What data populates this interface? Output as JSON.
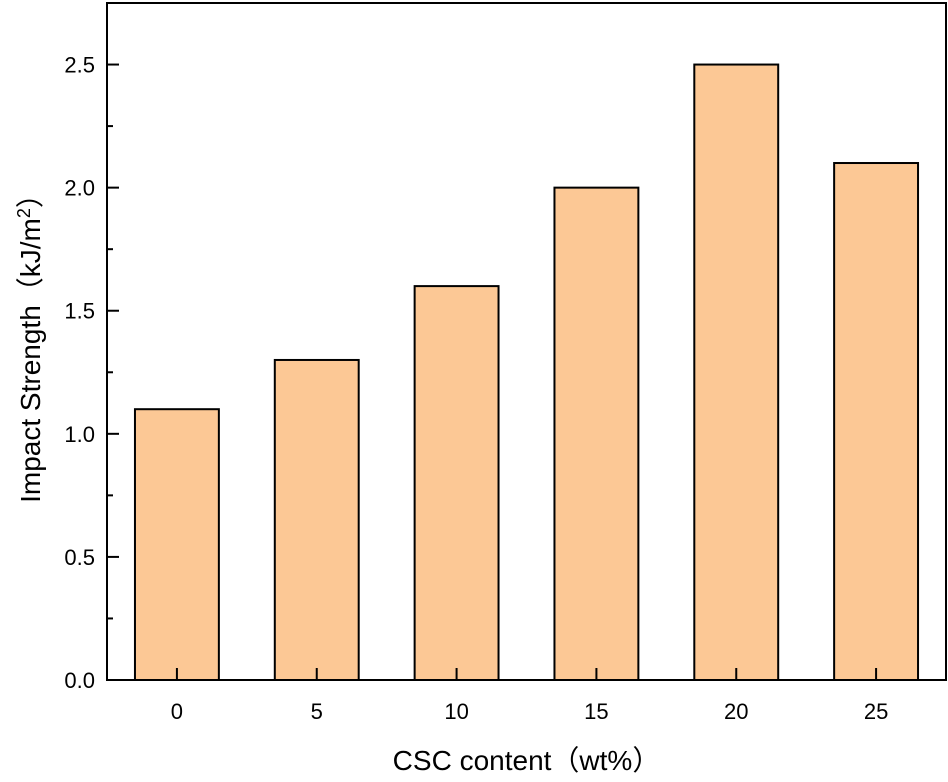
{
  "chart_data": {
    "type": "bar",
    "categories": [
      "0",
      "5",
      "10",
      "15",
      "20",
      "25"
    ],
    "values": [
      1.1,
      1.3,
      1.6,
      2.0,
      2.5,
      2.1
    ],
    "title": "",
    "xlabel": "CSC content（wt%）",
    "ylabel_main": "Impact Strength（kJ/m",
    "ylabel_sup": "2",
    "ylabel_end": "）",
    "ylim": [
      0,
      2.75
    ],
    "yticks": [
      "0.0",
      "0.5",
      "1.0",
      "1.5",
      "2.0",
      "2.5"
    ],
    "ytick_values": [
      0,
      0.5,
      1.0,
      1.5,
      2.0,
      2.5
    ],
    "bar_color": "#FCC895",
    "grid": false,
    "legend": "none"
  }
}
